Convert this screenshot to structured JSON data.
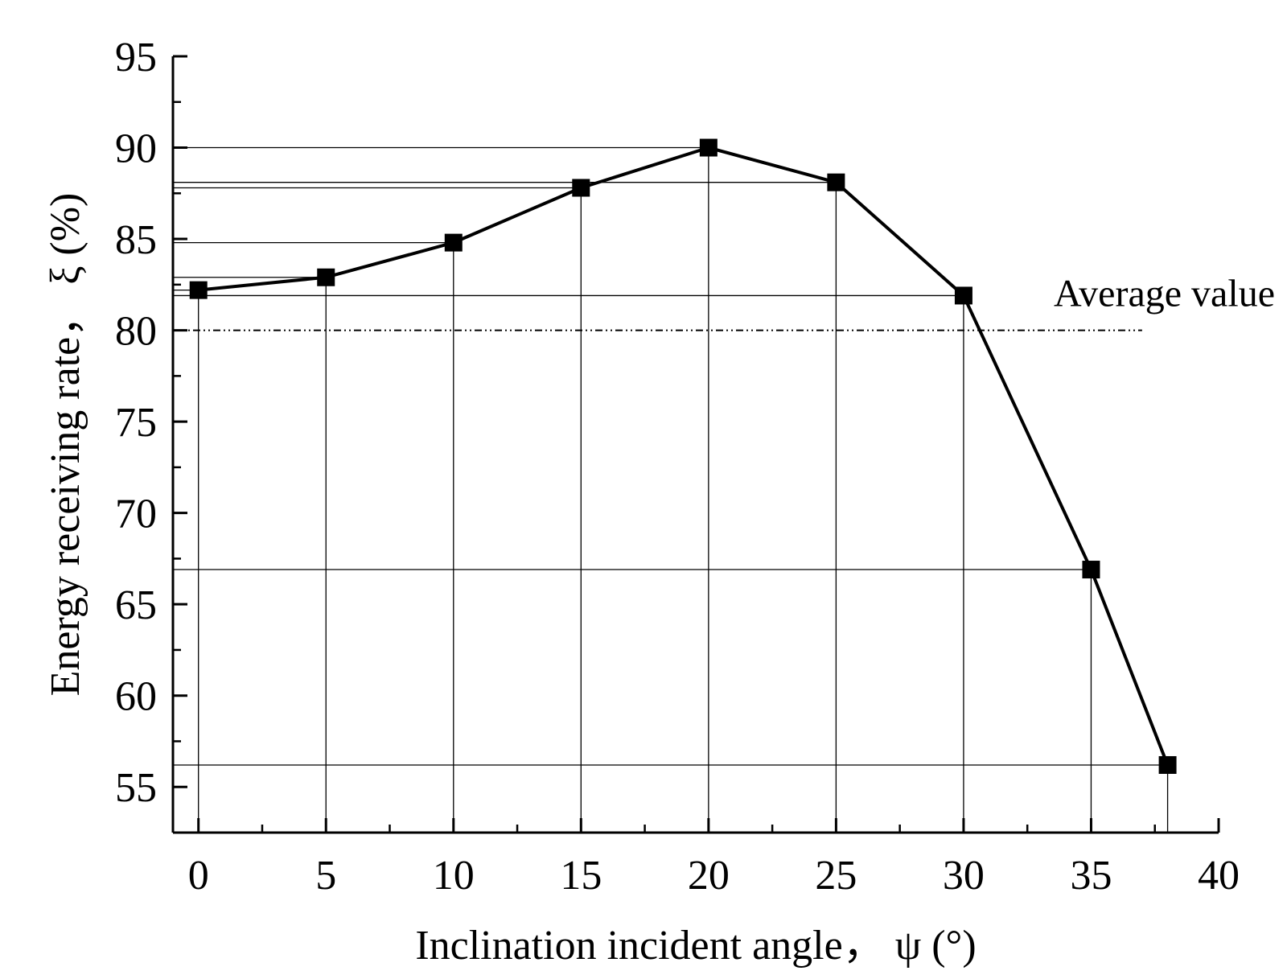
{
  "chart_data": {
    "type": "line",
    "xlabel": "Inclination incident angle， ψ (°)",
    "ylabel": "Energy receiving rate， ξ (%)",
    "xlim": [
      -1,
      40
    ],
    "ylim": [
      52.5,
      95
    ],
    "xticks": [
      0,
      5,
      10,
      15,
      20,
      25,
      30,
      35,
      40
    ],
    "yticks": [
      55,
      60,
      65,
      70,
      75,
      80,
      85,
      90,
      95
    ],
    "series": [
      {
        "x": [
          0,
          5,
          10,
          15,
          20,
          25,
          30,
          35,
          38
        ],
        "y": [
          82.2,
          82.9,
          84.8,
          87.8,
          90.0,
          88.1,
          81.9,
          66.9,
          56.2
        ]
      }
    ],
    "reference_line": {
      "label": "Average value",
      "y": 80.0,
      "x_end": 37
    },
    "grid": false,
    "drop_lines": true,
    "marker": "square",
    "colors": {
      "line": "#000000",
      "marker": "#000000",
      "guide": "#000000"
    }
  }
}
